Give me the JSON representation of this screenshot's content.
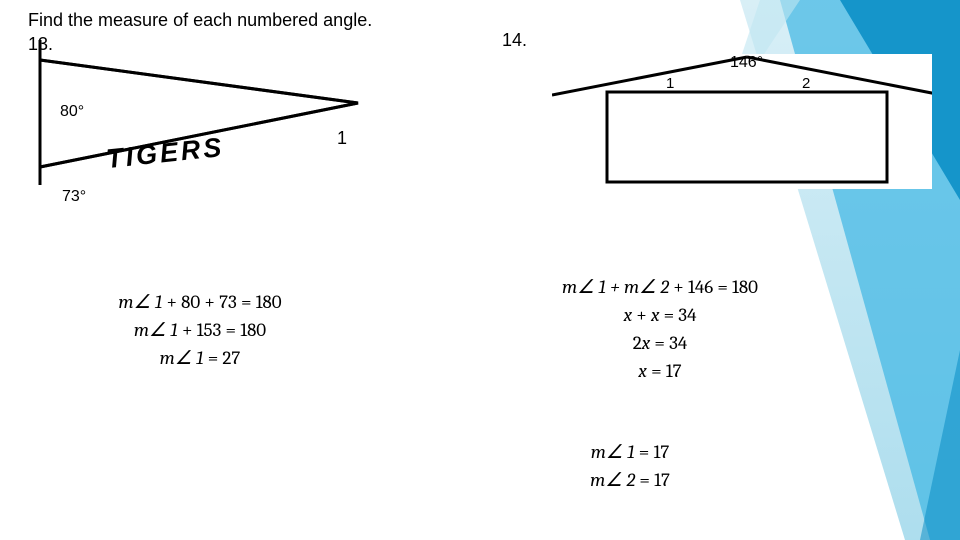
{
  "heading": "Find the measure of each numbered angle.",
  "problems": {
    "p13": {
      "num": "13.",
      "figure": {
        "apex_angle": "80°",
        "bottom_angle": "73°",
        "banner_text": "TIGERS",
        "target_angle_label": "1",
        "fill": "#ffffff",
        "stroke": "#000000"
      },
      "work_lines": [
        "m∠ 1 + 80 + 73 = 180",
        "m∠ 1 + 153 = 180",
        "m∠ 1 = 27"
      ]
    },
    "p14": {
      "num": "14.",
      "figure": {
        "apex_angle": "146°",
        "left_label": "1",
        "right_label": "2",
        "fill": "#ffffff",
        "stroke": "#000000"
      },
      "work_lines_a": [
        "m∠ 1 + m∠ 2 + 146 = 180",
        "x + x = 34",
        "2x = 34",
        "x = 17"
      ],
      "work_lines_b": [
        "m∠ 1 = 17",
        "m∠ 2 = 17"
      ]
    }
  },
  "decor": {
    "colors": {
      "light": "#bfe6f2",
      "mid": "#3fb7e4",
      "dark": "#0088c2"
    }
  }
}
